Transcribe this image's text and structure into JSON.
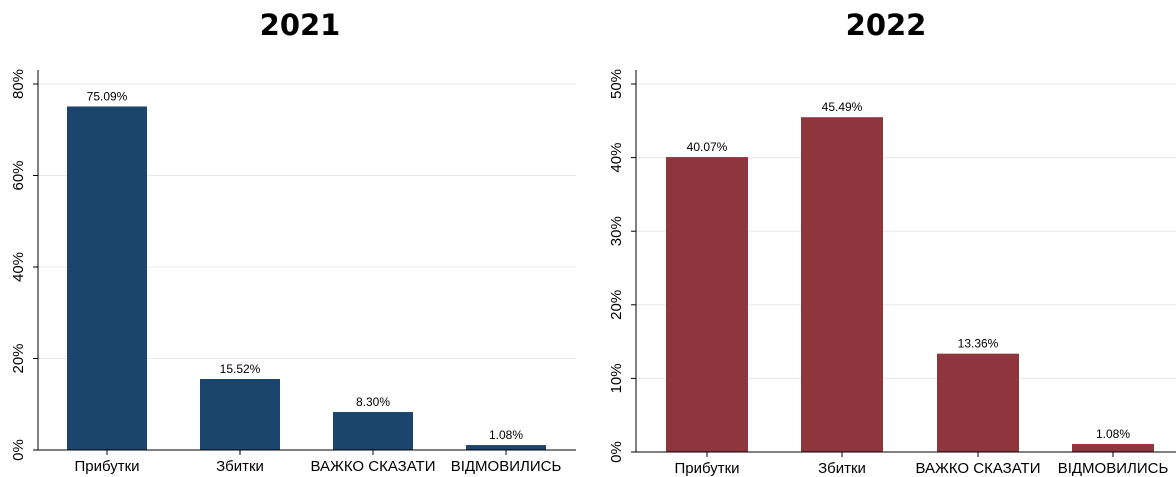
{
  "chart_data": [
    {
      "type": "bar",
      "title": "2021",
      "categories": [
        "Прибутки",
        "Збитки",
        "ВАЖКО СКАЗАТИ",
        "ВІДМОВИЛИСЬ"
      ],
      "values": [
        75.09,
        15.52,
        8.3,
        1.08
      ],
      "data_labels": [
        "75.09%",
        "15.52%",
        "8.30%",
        "1.08%"
      ],
      "yticks": [
        0,
        20,
        40,
        60,
        80
      ],
      "ytick_labels": [
        "0%",
        "20%",
        "40%",
        "60%",
        "80%"
      ],
      "ylim": [
        0,
        80
      ],
      "grid": true,
      "color": "#1c456d"
    },
    {
      "type": "bar",
      "title": "2022",
      "categories": [
        "Прибутки",
        "Збитки",
        "ВАЖКО СКАЗАТИ",
        "ВІДМОВИЛИСЬ"
      ],
      "values": [
        40.07,
        45.49,
        13.36,
        1.08
      ],
      "data_labels": [
        "40.07%",
        "45.49%",
        "13.36%",
        "1.08%"
      ],
      "yticks": [
        0,
        10,
        20,
        30,
        40,
        50
      ],
      "ytick_labels": [
        "0%",
        "10%",
        "20%",
        "30%",
        "40%",
        "50%"
      ],
      "ylim": [
        0,
        50
      ],
      "grid": true,
      "color": "#8f353e"
    }
  ]
}
